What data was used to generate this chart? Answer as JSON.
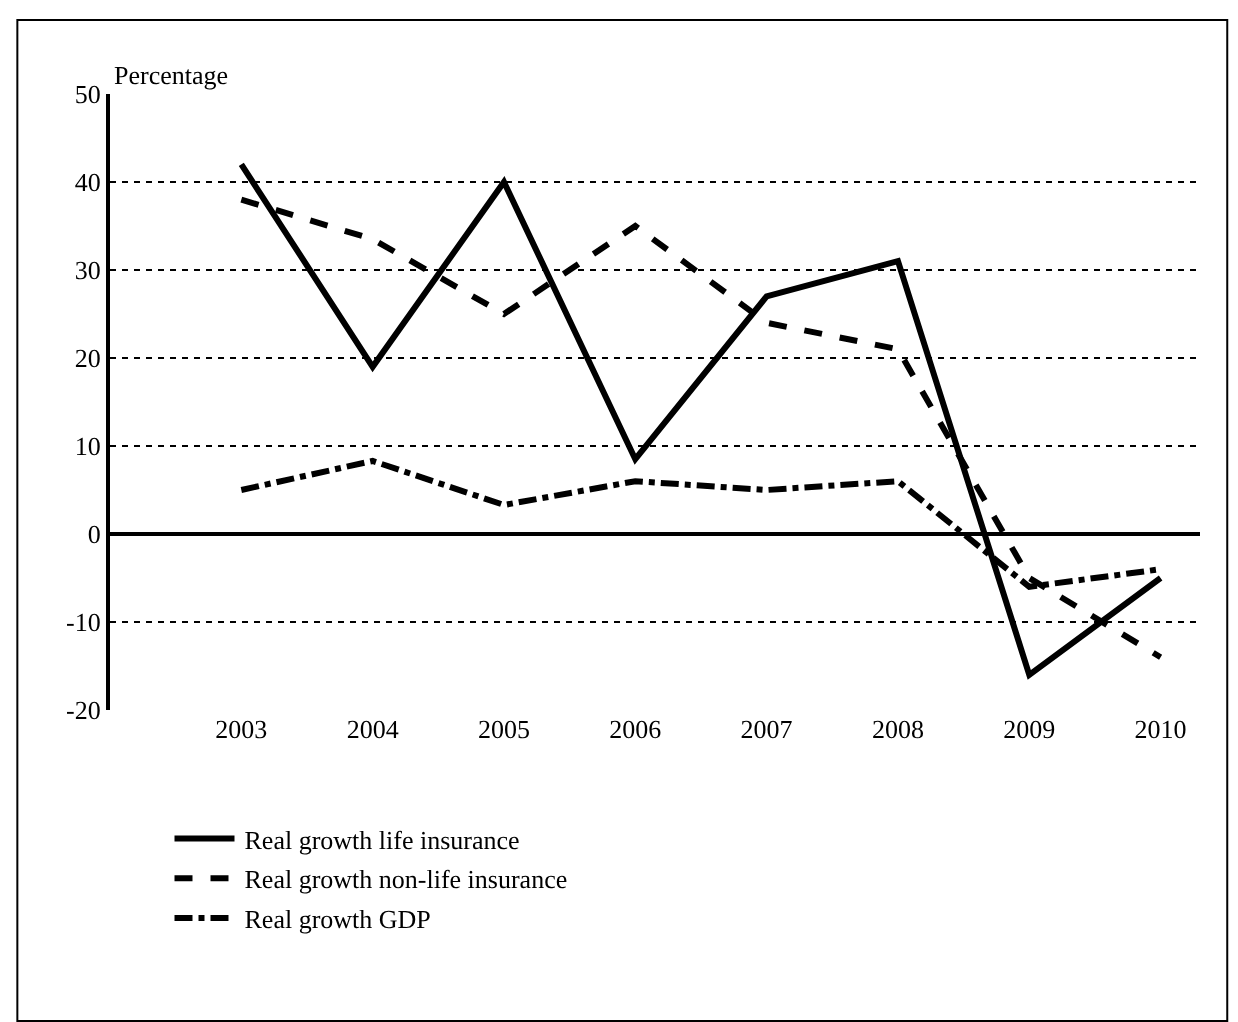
{
  "chart_data": {
    "type": "line",
    "ylabel": "Percentage",
    "categories": [
      "2003",
      "2004",
      "2005",
      "2006",
      "2007",
      "2008",
      "2009",
      "2010"
    ],
    "series": [
      {
        "name": "Real growth life insurance",
        "color": "#000000",
        "line_style": "solid",
        "values": [
          42,
          19,
          40,
          8.5,
          27,
          31,
          -16,
          -5
        ]
      },
      {
        "name": "Real growth non-life insurance",
        "color": "#000000",
        "line_style": "dashed",
        "values": [
          38,
          33.5,
          25,
          35,
          24,
          21,
          -5,
          -14
        ]
      },
      {
        "name": "Real growth GDP",
        "color": "#000000",
        "line_style": "dashdot",
        "values": [
          5,
          8.3,
          3.3,
          6,
          5,
          6,
          -6,
          -4
        ]
      }
    ],
    "ylim": [
      -20,
      50
    ],
    "yticks": [
      -20,
      -10,
      0,
      10,
      20,
      30,
      40,
      50
    ],
    "grid": "y",
    "legend": "bottom left",
    "marker": "none"
  }
}
